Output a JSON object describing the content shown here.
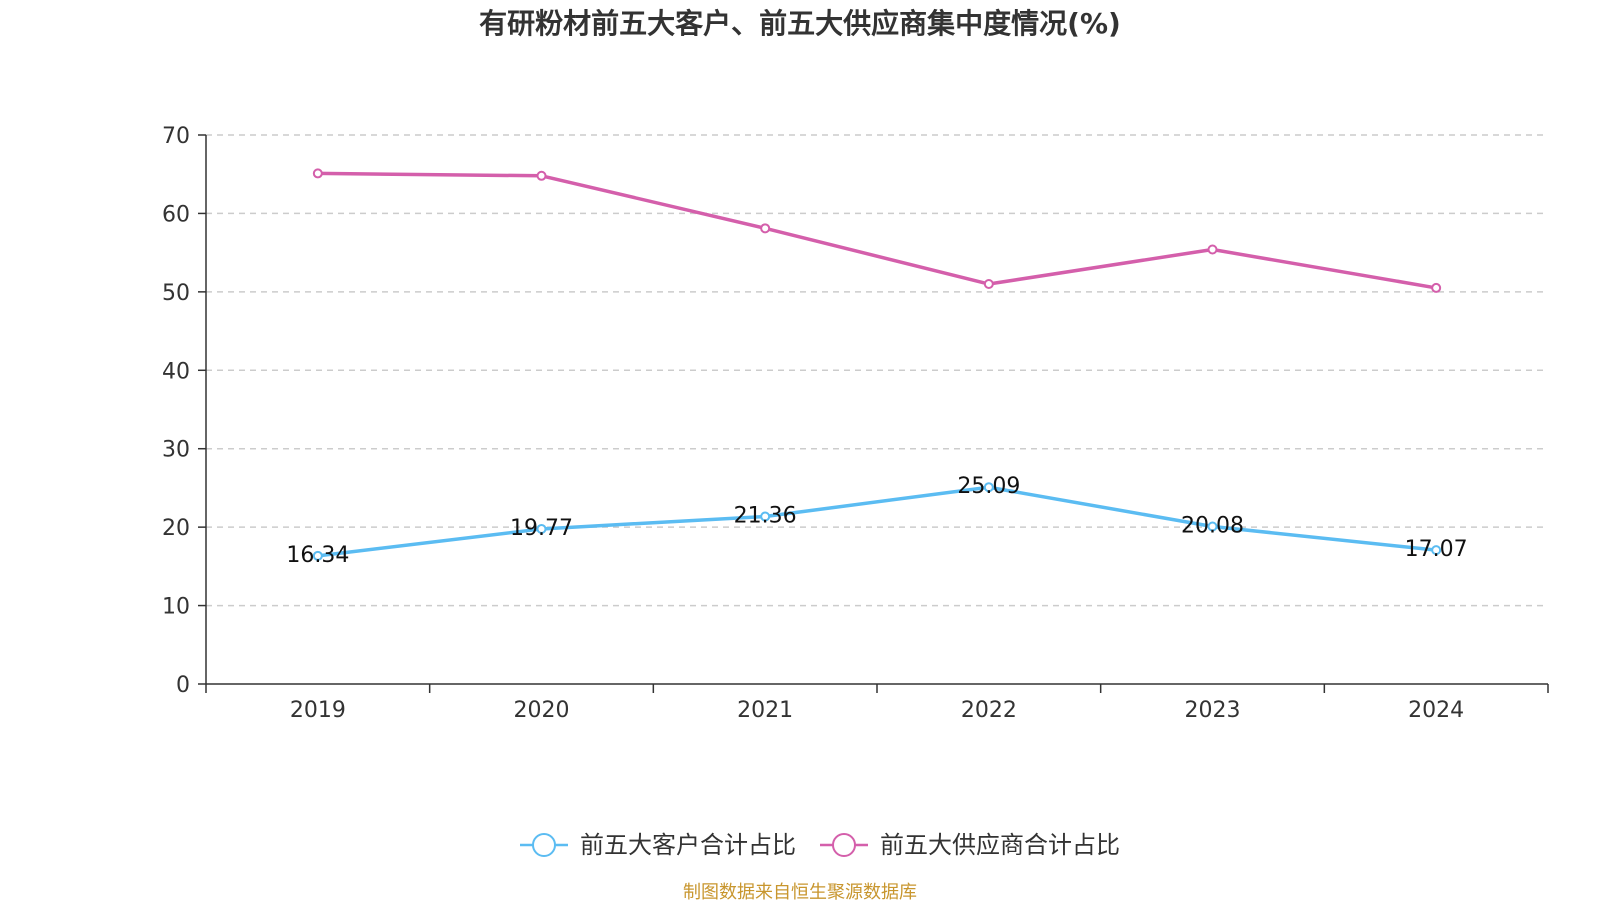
{
  "chart_data": {
    "type": "line",
    "title": "有研粉材前五大客户、前五大供应商集中度情况(%)",
    "categories": [
      "2019",
      "2020",
      "2021",
      "2022",
      "2023",
      "2024"
    ],
    "ylim": [
      0,
      70
    ],
    "yticks": [
      0,
      10,
      20,
      30,
      40,
      50,
      60,
      70
    ],
    "grid": true,
    "legend_position": "bottom",
    "series": [
      {
        "name": "前五大客户合计占比",
        "color": "#5bbcf2",
        "values": [
          16.34,
          19.77,
          21.36,
          25.09,
          20.08,
          17.07
        ],
        "show_labels": true
      },
      {
        "name": "前五大供应商合计占比",
        "color": "#d45fab",
        "values": [
          65.1,
          64.8,
          58.1,
          51.0,
          55.4,
          50.5
        ],
        "show_labels": false
      }
    ],
    "source": "制图数据来自恒生聚源数据库"
  }
}
